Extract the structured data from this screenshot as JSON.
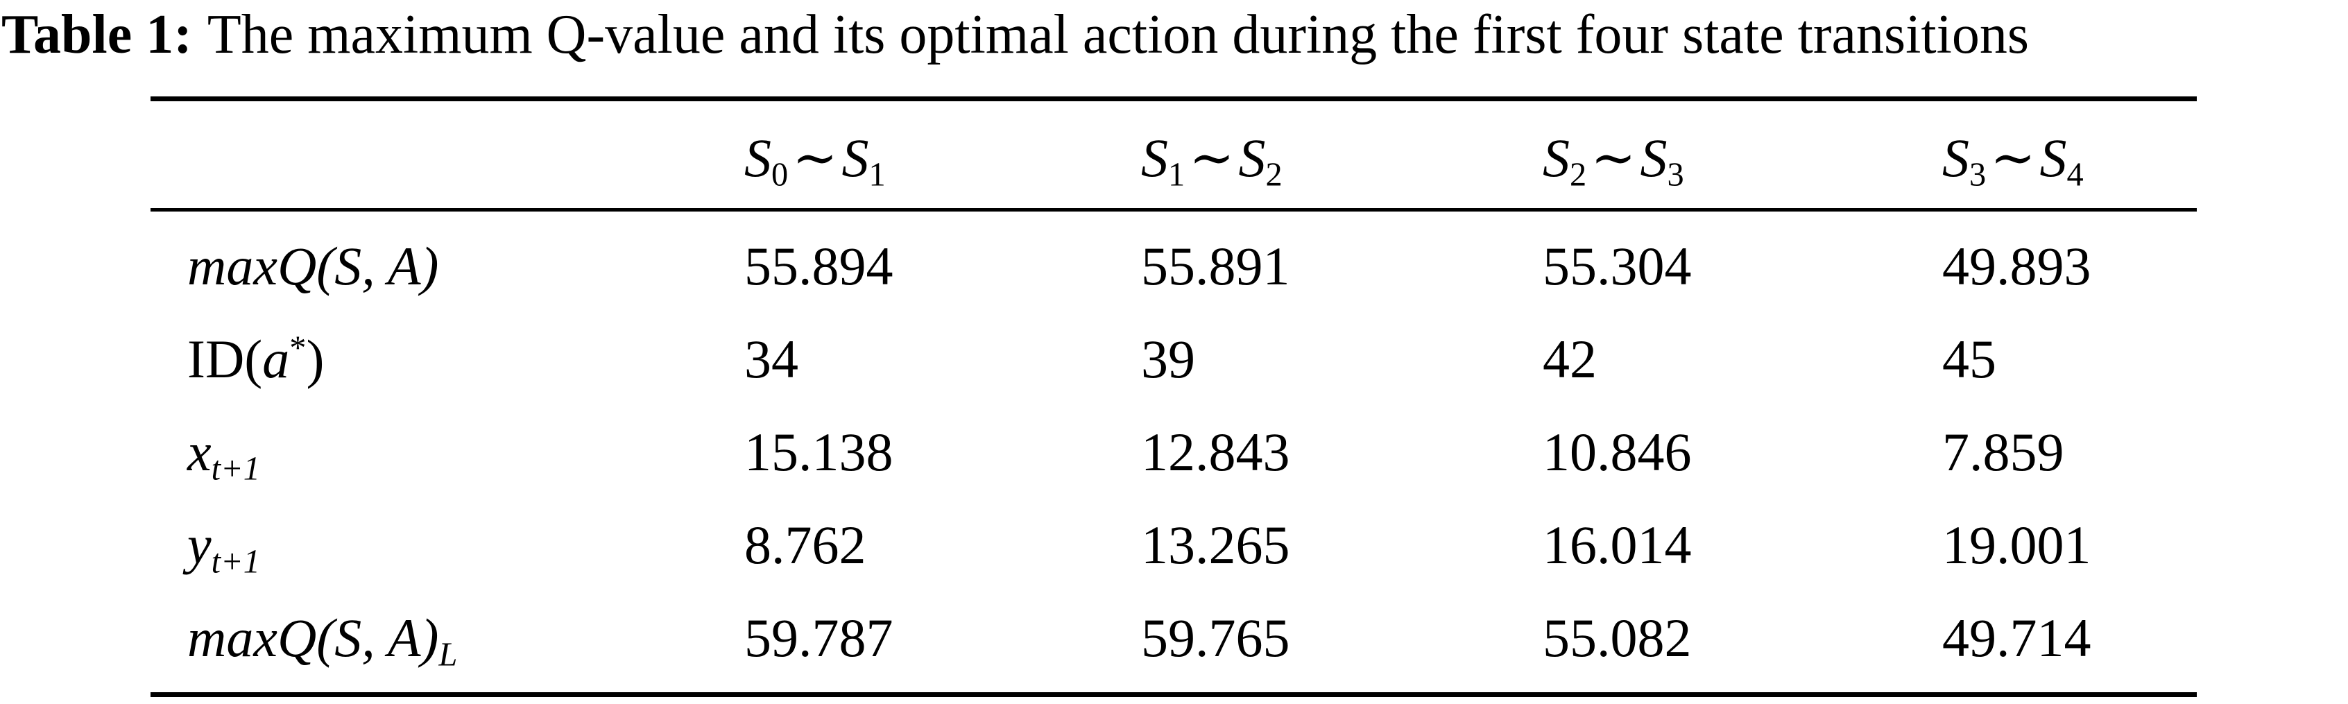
{
  "caption": {
    "label": "Table 1:",
    "text": "The maximum Q-value and its optimal action during the first four state transitions"
  },
  "header": [
    {
      "a": "S",
      "a_sub": "0",
      "sep": "∼",
      "b": "S",
      "b_sub": "1"
    },
    {
      "a": "S",
      "a_sub": "1",
      "sep": "∼",
      "b": "S",
      "b_sub": "2"
    },
    {
      "a": "S",
      "a_sub": "2",
      "sep": "∼",
      "b": "S",
      "b_sub": "3"
    },
    {
      "a": "S",
      "a_sub": "3",
      "sep": "∼",
      "b": "S",
      "b_sub": "4"
    }
  ],
  "rows": [
    {
      "label": {
        "main": "maxQ",
        "paren": "(S, A)",
        "sub": ""
      },
      "values": [
        "55.894",
        "55.891",
        "55.304",
        "49.893"
      ]
    },
    {
      "label": {
        "roman": "ID(",
        "var": "a",
        "sup": "*",
        "close": ")"
      },
      "values": [
        "34",
        "39",
        "42",
        "45"
      ]
    },
    {
      "label": {
        "main": "x",
        "sub": "t+1"
      },
      "values": [
        "15.138",
        "12.843",
        "10.846",
        "7.859"
      ]
    },
    {
      "label": {
        "main": "y",
        "sub": "t+1"
      },
      "values": [
        "8.762",
        "13.265",
        "16.014",
        "19.001"
      ]
    },
    {
      "label": {
        "main": "maxQ",
        "paren": "(S, A)",
        "sub": "L"
      },
      "values": [
        "59.787",
        "59.765",
        "55.082",
        "49.714"
      ]
    }
  ]
}
